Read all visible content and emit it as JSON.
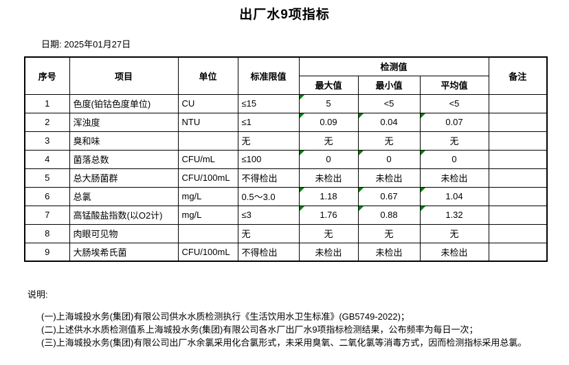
{
  "title": "出厂水9项指标",
  "date_line": "日期: 2025年01月27日",
  "colors": {
    "background": "#ffffff",
    "text": "#000000",
    "border": "#000000",
    "flag_green": "#008000"
  },
  "table": {
    "headers": {
      "seq": "序号",
      "item": "项目",
      "unit": "单位",
      "limit": "标准限值",
      "detection": "检测值",
      "max": "最大值",
      "min": "最小值",
      "avg": "平均值",
      "remark": "备注"
    },
    "rows": [
      {
        "seq": "1",
        "item": "色度(铂钴色度单位)",
        "unit": "CU",
        "limit": "≤15",
        "max": "5",
        "min": "<5",
        "avg": "<5",
        "remark": "",
        "flags": {
          "max": true,
          "min": false,
          "avg": false
        }
      },
      {
        "seq": "2",
        "item": "浑浊度",
        "unit": "NTU",
        "limit": "≤1",
        "max": "0.09",
        "min": "0.04",
        "avg": "0.07",
        "remark": "",
        "flags": {
          "max": true,
          "min": true,
          "avg": true
        }
      },
      {
        "seq": "3",
        "item": "臭和味",
        "unit": "",
        "limit": "无",
        "max": "无",
        "min": "无",
        "avg": "无",
        "remark": "",
        "flags": {
          "max": false,
          "min": false,
          "avg": false
        }
      },
      {
        "seq": "4",
        "item": "菌落总数",
        "unit": "CFU/mL",
        "limit": "≤100",
        "max": "0",
        "min": "0",
        "avg": "0",
        "remark": "",
        "flags": {
          "max": true,
          "min": true,
          "avg": true
        }
      },
      {
        "seq": "5",
        "item": "总大肠菌群",
        "unit": "CFU/100mL",
        "limit": "不得检出",
        "max": "未检出",
        "min": "未检出",
        "avg": "未检出",
        "remark": "",
        "flags": {
          "max": false,
          "min": false,
          "avg": false
        }
      },
      {
        "seq": "6",
        "item": "总氯",
        "unit": "mg/L",
        "limit": "0.5～3.0",
        "max": "1.18",
        "min": "0.67",
        "avg": "1.04",
        "remark": "",
        "flags": {
          "max": true,
          "min": true,
          "avg": true
        }
      },
      {
        "seq": "7",
        "item": "高锰酸盐指数(以O2计)",
        "unit": "mg/L",
        "limit": "≤3",
        "max": "1.76",
        "min": "0.88",
        "avg": "1.32",
        "remark": "",
        "flags": {
          "max": true,
          "min": true,
          "avg": true
        }
      },
      {
        "seq": "8",
        "item": "肉眼可见物",
        "unit": "",
        "limit": "无",
        "max": "无",
        "min": "无",
        "avg": "无",
        "remark": "",
        "flags": {
          "max": false,
          "min": false,
          "avg": false
        }
      },
      {
        "seq": "9",
        "item": "大肠埃希氏菌",
        "unit": "CFU/100mL",
        "limit": "不得检出",
        "max": "未检出",
        "min": "未检出",
        "avg": "未检出",
        "remark": "",
        "flags": {
          "max": false,
          "min": false,
          "avg": false
        }
      }
    ]
  },
  "notes": {
    "label": "说明:",
    "items": [
      "(一)上海城投水务(集团)有限公司供水水质检测执行《生活饮用水卫生标准》(GB5749-2022)；",
      "(二)上述供水水质检测值系上海城投水务(集团)有限公司各水厂出厂水9项指标检测结果，公布频率为每日一次；",
      "(三)上海城投水务(集团)有限公司出厂水余氯采用化合氯形式，未采用臭氧、二氧化氯等消毒方式，因而检测指标采用总氯。"
    ]
  }
}
